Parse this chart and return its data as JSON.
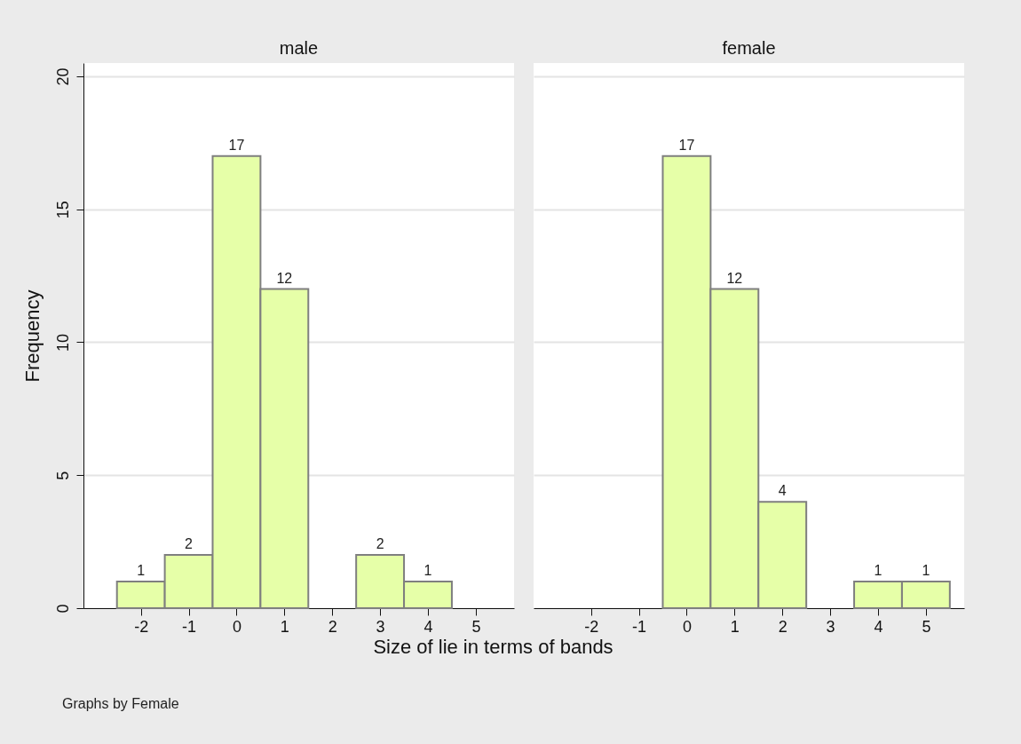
{
  "chart_data": [
    {
      "type": "histogram",
      "title": "male",
      "xlabel": "Size of lie in terms of bands",
      "ylabel": "Frequency",
      "annotations": [
        "Graphs by Female"
      ],
      "bins": [
        -2.5,
        -1.5,
        -0.5,
        0.5,
        1.5,
        2.5,
        3.5,
        4.5
      ],
      "values": [
        1,
        2,
        17,
        12,
        0,
        2,
        1
      ],
      "value_labels": [
        "1",
        "2",
        "17",
        "12",
        null,
        "2",
        "1"
      ],
      "color": "#e6ffa8",
      "xlim": [
        -3.2,
        5.8
      ],
      "xticks": [
        -2,
        -1,
        0,
        1,
        2,
        3,
        4,
        5
      ],
      "ylim": [
        0,
        20.5
      ],
      "yticks": [
        0,
        5,
        10,
        15,
        20
      ],
      "grid": "y"
    },
    {
      "type": "histogram",
      "title": "female",
      "bins": [
        -0.5,
        0.5,
        1.5,
        2.5,
        3.5,
        4.5,
        5.5
      ],
      "values": [
        17,
        12,
        4,
        0,
        1,
        1
      ],
      "value_labels": [
        "17",
        "12",
        "4",
        null,
        "1",
        "1"
      ],
      "color": "#e6ffa8",
      "xlim": [
        -3.2,
        5.8
      ],
      "xticks": [
        -2,
        -1,
        0,
        1,
        2,
        3,
        4,
        5
      ],
      "ylim": [
        0,
        20.5
      ],
      "yticks": [
        0,
        5,
        10,
        15,
        20
      ],
      "grid": "y",
      "tick_labels": "x"
    }
  ]
}
